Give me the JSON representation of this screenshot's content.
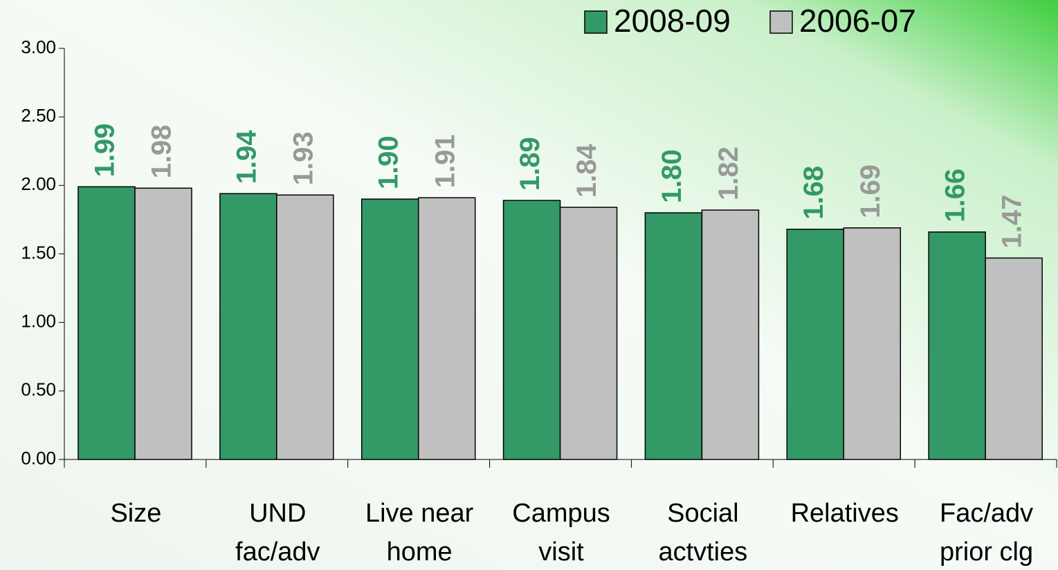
{
  "chart_data": {
    "type": "bar",
    "categories": [
      "Size",
      "UND\nfac/adv",
      "Live near\nhome",
      "Campus\nvisit",
      "Social\nactvties",
      "Relatives",
      "Fac/adv\nprior clg"
    ],
    "series": [
      {
        "name": "2008-09",
        "color": "#339966",
        "label_color": "#339966",
        "values": [
          1.99,
          1.94,
          1.9,
          1.89,
          1.8,
          1.68,
          1.66
        ],
        "value_labels": [
          "1.99",
          "1.94",
          "1.90",
          "1.89",
          "1.80",
          "1.68",
          "1.66"
        ]
      },
      {
        "name": "2006-07",
        "color": "#c0c0c0",
        "label_color": "#999999",
        "values": [
          1.98,
          1.93,
          1.91,
          1.84,
          1.82,
          1.69,
          1.47
        ],
        "value_labels": [
          "1.98",
          "1.93",
          "1.91",
          "1.84",
          "1.82",
          "1.69",
          "1.47"
        ]
      }
    ],
    "ylim": [
      0,
      3
    ],
    "yticks": [
      {
        "value": 0,
        "label": "0.00"
      },
      {
        "value": 0.5,
        "label": "0.50"
      },
      {
        "value": 1,
        "label": "1.00"
      },
      {
        "value": 1.5,
        "label": "1.50"
      },
      {
        "value": 2,
        "label": "2.00"
      },
      {
        "value": 2.5,
        "label": "2.50"
      },
      {
        "value": 3,
        "label": "3.00"
      }
    ],
    "grid": false,
    "legend": "top-right"
  }
}
